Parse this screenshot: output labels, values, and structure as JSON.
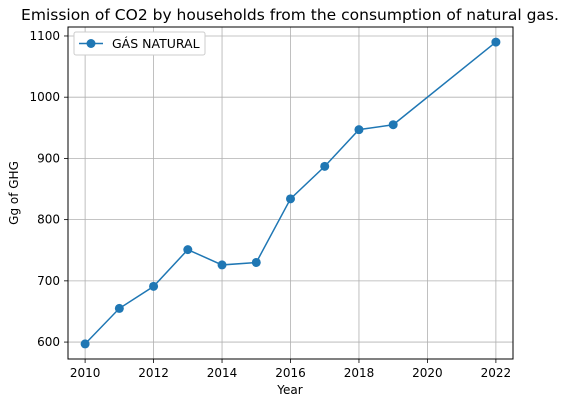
{
  "chart_data": {
    "type": "line",
    "title": "Emission of CO2 by households from the consumption of natural gas.",
    "xlabel": "Year",
    "ylabel": "Gg of GHG",
    "x": [
      2010,
      2011,
      2012,
      2013,
      2014,
      2015,
      2016,
      2017,
      2018,
      2019,
      2020,
      2021,
      2022
    ],
    "series": [
      {
        "name": "GÁS NATURAL",
        "color": "#1f77b4",
        "values": [
          597,
          655,
          691,
          751,
          726,
          730,
          834,
          887,
          947,
          955,
          null,
          null,
          1090
        ]
      }
    ],
    "xticks": [
      2010,
      2012,
      2014,
      2016,
      2018,
      2020,
      2022
    ],
    "yticks": [
      600,
      700,
      800,
      900,
      1000,
      1100
    ],
    "xlim": [
      2009.5,
      2022.5
    ],
    "ylim": [
      572.35,
      1114.65
    ],
    "grid": true,
    "legend_position": "top-left"
  }
}
